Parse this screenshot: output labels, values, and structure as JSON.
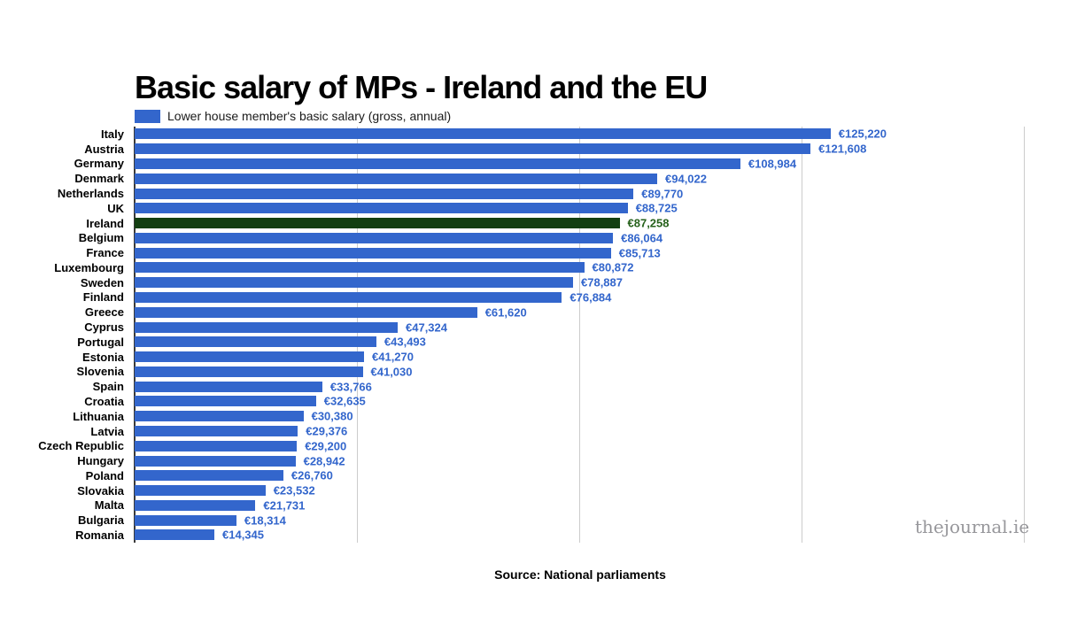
{
  "title": "Basic salary of MPs - Ireland and the EU",
  "legend": {
    "label": "Lower house member's basic salary (gross, annual)"
  },
  "source_note": "Source: National parliaments",
  "watermark": "thejournal.ie",
  "colors": {
    "bar": "#3366cc",
    "highlight_bar": "#133f11",
    "value_text": "#3366cc",
    "highlight_value_text": "#26611b",
    "gridline": "#cccccc",
    "axis": "#3a3a3a"
  },
  "chart_data": {
    "type": "bar",
    "orientation": "horizontal",
    "title": "Basic salary of MPs - Ireland and the EU",
    "legend_entries": [
      "Lower house member's basic salary (gross, annual)"
    ],
    "legend_position": "top-left",
    "xlabel": "",
    "ylabel": "",
    "xlim": [
      0,
      160000
    ],
    "gridlines_x": [
      0,
      40000,
      80000,
      120000,
      160000
    ],
    "grid": true,
    "highlight_category": "Ireland",
    "categories": [
      "Italy",
      "Austria",
      "Germany",
      "Denmark",
      "Netherlands",
      "UK",
      "Ireland",
      "Belgium",
      "France",
      "Luxembourg",
      "Sweden",
      "Finland",
      "Greece",
      "Cyprus",
      "Portugal",
      "Estonia",
      "Slovenia",
      "Spain",
      "Croatia",
      "Lithuania",
      "Latvia",
      "Czech Republic",
      "Hungary",
      "Poland",
      "Slovakia",
      "Malta",
      "Bulgaria",
      "Romania"
    ],
    "values": [
      125220,
      121608,
      108984,
      94022,
      89770,
      88725,
      87258,
      86064,
      85713,
      80872,
      78887,
      76884,
      61620,
      47324,
      43493,
      41270,
      41030,
      33766,
      32635,
      30380,
      29376,
      29200,
      28942,
      26760,
      23532,
      21731,
      18314,
      14345
    ],
    "value_labels": [
      "€125,220",
      "€121,608",
      "€108,984",
      "€94,022",
      "€89,770",
      "€88,725",
      "€87,258",
      "€86,064",
      "€85,713",
      "€80,872",
      "€78,887",
      "€76,884",
      "€61,620",
      "€47,324",
      "€43,493",
      "€41,270",
      "€41,030",
      "€33,766",
      "€32,635",
      "€30,380",
      "€29,376",
      "€29,200",
      "€28,942",
      "€26,760",
      "€23,532",
      "€21,731",
      "€18,314",
      "€14,345"
    ]
  }
}
